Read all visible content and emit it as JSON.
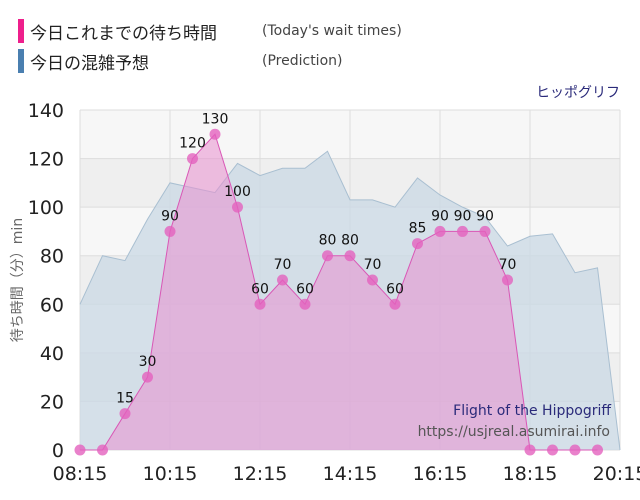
{
  "legend": [
    {
      "label_jp": "今日これまでの待ち時間",
      "label_en": "(Today's wait times)",
      "color": "#ee1f8c"
    },
    {
      "label_jp": "今日の混雑予想",
      "label_en": "(Prediction)",
      "color": "#4a7fb0"
    }
  ],
  "colors": {
    "actual_fill": "#e98fd0",
    "actual_line": "#d957b6",
    "actual_marker": "#e362be",
    "prediction_fill": "#c9d8e4",
    "prediction_line": "#a9bfd1",
    "plot_band_light": "#f7f7f7",
    "plot_band_dark": "#efefef"
  },
  "chart_data": {
    "type": "area",
    "title": "ヒッポグリフ",
    "ylabel": "待ち時間（分）min",
    "ylim": [
      0,
      140
    ],
    "yticks": [
      "0",
      "20",
      "40",
      "60",
      "80",
      "100",
      "120",
      "140"
    ],
    "xticks": [
      "08:15",
      "10:15",
      "12:15",
      "14:15",
      "16:15",
      "18:15",
      "20:15"
    ],
    "grid": true,
    "annotations": [
      "Flight of the Hippogriff",
      "https://usjreal.asumirai.info"
    ],
    "actual": {
      "x": [
        "08:15",
        "08:45",
        "09:15",
        "09:45",
        "10:15",
        "10:45",
        "11:15",
        "11:45",
        "12:15",
        "12:45",
        "13:15",
        "13:45",
        "14:15",
        "14:45",
        "15:15",
        "15:45",
        "16:15",
        "16:45",
        "17:15",
        "17:45",
        "18:15",
        "18:45",
        "19:15",
        "19:45"
      ],
      "values": [
        0,
        0,
        15,
        30,
        90,
        120,
        130,
        100,
        60,
        70,
        60,
        80,
        80,
        70,
        60,
        85,
        90,
        90,
        90,
        70,
        0,
        0,
        0,
        0
      ],
      "labels": [
        "",
        "",
        "15",
        "30",
        "90",
        "120",
        "130",
        "100",
        "60",
        "70",
        "60",
        "80",
        "80",
        "70",
        "60",
        "85",
        "90",
        "90",
        "90",
        "70",
        "",
        "",
        "",
        ""
      ]
    },
    "prediction": {
      "x": [
        "08:15",
        "08:45",
        "09:15",
        "09:45",
        "10:15",
        "10:45",
        "11:15",
        "11:45",
        "12:15",
        "12:45",
        "13:15",
        "13:45",
        "14:15",
        "14:45",
        "15:15",
        "15:45",
        "16:15",
        "16:45",
        "17:15",
        "17:45",
        "18:15",
        "18:45",
        "19:15",
        "19:45",
        "20:15"
      ],
      "values": [
        60,
        80,
        78,
        95,
        110,
        108,
        106,
        118,
        113,
        116,
        116,
        123,
        103,
        103,
        100,
        112,
        105,
        100,
        96,
        84,
        88,
        89,
        73,
        75,
        0
      ]
    }
  }
}
